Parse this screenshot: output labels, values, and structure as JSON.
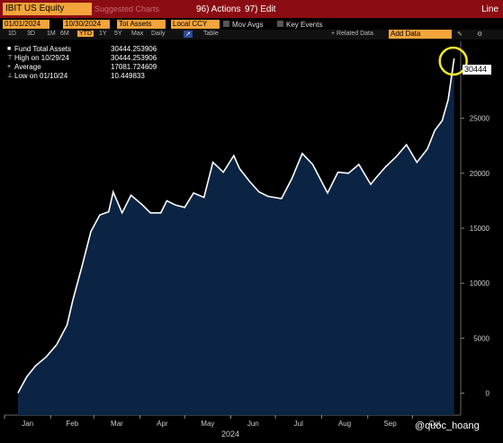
{
  "toolbar": {
    "ticker": "IBIT US Equity",
    "suggested": "Suggested Charts",
    "actions": "96) Actions",
    "edit": "97) Edit",
    "chart_mode": "Line",
    "date_from": "01/01/2024",
    "date_to": "10/30/2024",
    "field": "Tot Assets",
    "currency": "Local CCY",
    "mov_avgs": "Mov Avgs",
    "key_events": "Key Events",
    "related_data": "+ Related Data",
    "add_data": "Add Data",
    "periods": [
      "1D",
      "3D",
      "1M",
      "6M",
      "YTD",
      "1Y",
      "5Y",
      "Max",
      "Daily",
      "↗",
      "Table"
    ],
    "selected_period": "YTD"
  },
  "legend": {
    "rows": [
      {
        "key": "Fund Total Assets",
        "value": "30444.253906"
      },
      {
        "key": "High on 10/29/24",
        "value": "30444.253906"
      },
      {
        "key": "Average",
        "value": "17081.724609"
      },
      {
        "key": "Low on 01/10/24",
        "value": "10.449833"
      }
    ]
  },
  "last_value_label": "30444",
  "watermark": "@quoc_hoang",
  "colors": {
    "fill": "#0b2444",
    "line": "#ffffff",
    "accent": "#f3a43a",
    "header": "#8b0d13",
    "highlight": "#f2e82c"
  },
  "chart_data": {
    "type": "area",
    "title": "",
    "series": [
      {
        "name": "Fund Total Assets",
        "x": [
          "2024-01-10",
          "2024-01-16",
          "2024-01-22",
          "2024-01-29",
          "2024-02-05",
          "2024-02-12",
          "2024-02-16",
          "2024-02-22",
          "2024-02-28",
          "2024-03-05",
          "2024-03-11",
          "2024-03-14",
          "2024-03-20",
          "2024-03-26",
          "2024-04-02",
          "2024-04-08",
          "2024-04-15",
          "2024-04-19",
          "2024-04-25",
          "2024-05-01",
          "2024-05-07",
          "2024-05-14",
          "2024-05-20",
          "2024-05-27",
          "2024-06-03",
          "2024-06-07",
          "2024-06-14",
          "2024-06-20",
          "2024-06-26",
          "2024-07-05",
          "2024-07-12",
          "2024-07-19",
          "2024-07-26",
          "2024-08-05",
          "2024-08-12",
          "2024-08-19",
          "2024-08-26",
          "2024-09-03",
          "2024-09-06",
          "2024-09-13",
          "2024-09-20",
          "2024-09-27",
          "2024-10-04",
          "2024-10-11",
          "2024-10-16",
          "2024-10-21",
          "2024-10-25",
          "2024-10-29"
        ],
        "values": [
          10,
          1500,
          2500,
          3300,
          4400,
          6200,
          8500,
          11500,
          14700,
          16200,
          16500,
          18300,
          16400,
          18000,
          17200,
          16400,
          16400,
          17500,
          17100,
          16900,
          18200,
          17800,
          21000,
          20100,
          21600,
          20400,
          19200,
          18300,
          17900,
          17700,
          19500,
          21800,
          20800,
          18200,
          20100,
          20000,
          20800,
          19000,
          19500,
          20600,
          21500,
          22600,
          21000,
          22200,
          23900,
          24800,
          26700,
          30444
        ]
      }
    ],
    "xlabel": "2024",
    "ylabel": "",
    "ylim": [
      -2000,
      32000
    ],
    "y_ticks": [
      0,
      5000,
      10000,
      15000,
      20000,
      25000
    ],
    "x_tick_labels": [
      "Jan",
      "Feb",
      "Mar",
      "Apr",
      "May",
      "Jun",
      "Jul",
      "Aug",
      "Sep",
      "Oct"
    ],
    "x_tick_dates": [
      "2024-01-01",
      "2024-02-01",
      "2024-03-01",
      "2024-04-01",
      "2024-05-01",
      "2024-06-01",
      "2024-07-01",
      "2024-08-01",
      "2024-09-01",
      "2024-10-01"
    ],
    "x_range": [
      "2024-01-01",
      "2024-10-31"
    ],
    "grid": false,
    "legend_position": "top-left"
  }
}
